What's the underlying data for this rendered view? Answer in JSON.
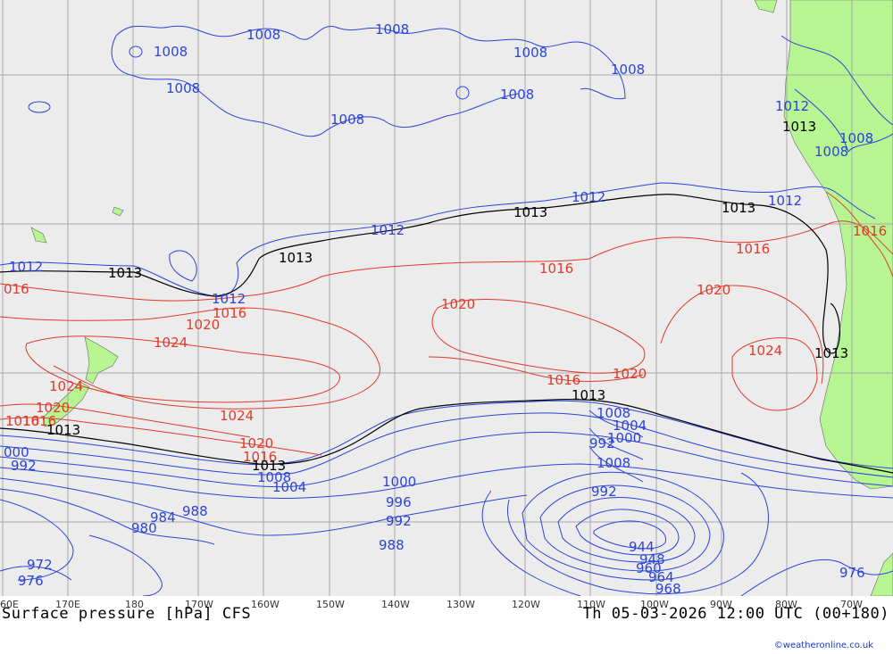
{
  "title": "Surface pressure [hPa] CFS",
  "valid_time": "Th 05-03-2026 12:00 UTC (00+180)",
  "credit": "©weatheronline.co.uk",
  "colors": {
    "background": "#ececec",
    "land": "#b7f593",
    "grid": "#a9a9a9",
    "low_isobar": "#2b44d8",
    "high_isobar": "#e03a2a",
    "reference_isobar": "#000000"
  },
  "longitude_labels": [
    "60E",
    "170E",
    "180",
    "170W",
    "160W",
    "150W",
    "140W",
    "130W",
    "120W",
    "110W",
    "100W",
    "90W",
    "80W",
    "70W"
  ],
  "isobar_labels": {
    "blue": [
      "1008",
      "1008",
      "1008",
      "1008",
      "1008",
      "1008",
      "1008",
      "1008",
      "1012",
      "1012",
      "1012",
      "1012",
      "1012",
      "1008",
      "1008",
      "1012",
      "1008",
      "1004",
      "1000",
      "992",
      "1008",
      "1004",
      "1000",
      "996",
      "992",
      "988",
      "984",
      "988",
      "980",
      "972",
      "976",
      "944",
      "948",
      "960",
      "964",
      "968",
      "976",
      "000",
      "992",
      "1008",
      "992"
    ],
    "red": [
      "016",
      "1016",
      "1016",
      "1016",
      "1016",
      "1016",
      "1020",
      "1020",
      "1020",
      "1020",
      "1024",
      "1024",
      "1024",
      "1024",
      "1020",
      "1020",
      "1016",
      "1016",
      "1016"
    ],
    "black": [
      "1013",
      "1013",
      "1013",
      "1013",
      "1013",
      "1013",
      "1013",
      "1013",
      "1013"
    ]
  }
}
